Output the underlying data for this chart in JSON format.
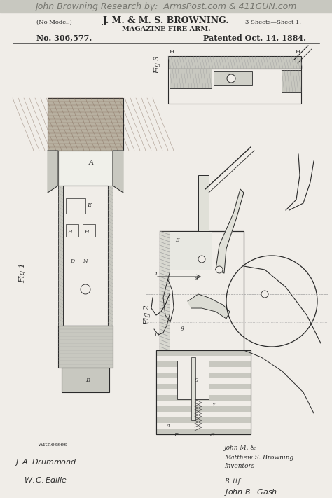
{
  "figsize": [
    4.74,
    7.11
  ],
  "dpi": 100,
  "bg_color": "#e8e8e2",
  "top_text": "John Browning Research by:  ArmsPost.com & 411GUN.com",
  "top_text_color": "#888880",
  "header_no_model": "(No Model.)",
  "header_title1": "J. M. & M. S. BROWNING.",
  "header_sheets": "3 Sheets—Sheet 1.",
  "header_title2": "MAGAZINE FIRE ARM.",
  "header_no": "No. 306,577.",
  "header_patented": "Patented Oct. 14, 1884.",
  "fig1_label": "Fig 1",
  "fig2_label": "Fig 2",
  "fig3_label": "Fig 3",
  "ink_color": "#2a2a2a",
  "hatch_color": "#666666",
  "light_gray": "#c8c8c0",
  "mid_gray": "#a0a0a0",
  "paper_color": "#f0ede8",
  "dark_gray": "#606060"
}
